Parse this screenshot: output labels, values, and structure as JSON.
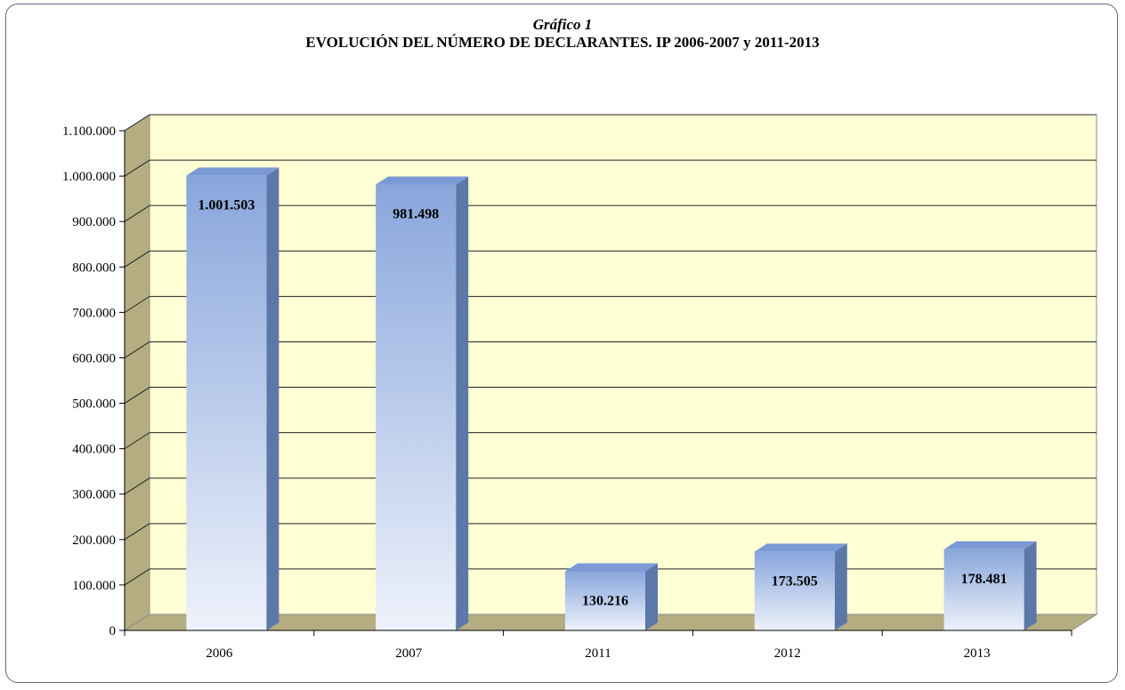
{
  "chart_data": {
    "type": "bar",
    "subtitle": "Gráfico 1",
    "title": "EVOLUCIÓN DEL NÚMERO DE DECLARANTES.   IP 2006-2007 y 2011-2013",
    "categories": [
      "2006",
      "2007",
      "2011",
      "2012",
      "2013"
    ],
    "values": [
      1001503,
      981498,
      130216,
      173505,
      178481
    ],
    "value_labels": [
      "1.001.503",
      "981.498",
      "130.216",
      "173.505",
      "178.481"
    ],
    "ylim": [
      0,
      1100000
    ],
    "yticks": [
      0,
      100000,
      200000,
      300000,
      400000,
      500000,
      600000,
      700000,
      800000,
      900000,
      1000000,
      1100000
    ],
    "ytick_labels": [
      "0",
      "100.000",
      "200.000",
      "300.000",
      "400.000",
      "500.000",
      "600.000",
      "700.000",
      "800.000",
      "900.000",
      "1.000.000",
      "1.100.000"
    ],
    "grid": true,
    "legend": "none",
    "three_d": true,
    "colors": {
      "plot_back": "#ffffd6",
      "plot_side": "#b5ad82",
      "plot_floor": "#b5ad82",
      "bar_top": "#88a6dc",
      "bar_bottom": "#eef2fb",
      "bar_side": "#5b78a9",
      "bar_cap": "#7b99d4",
      "gridline": "#222222",
      "frame": "#6e6478"
    }
  }
}
